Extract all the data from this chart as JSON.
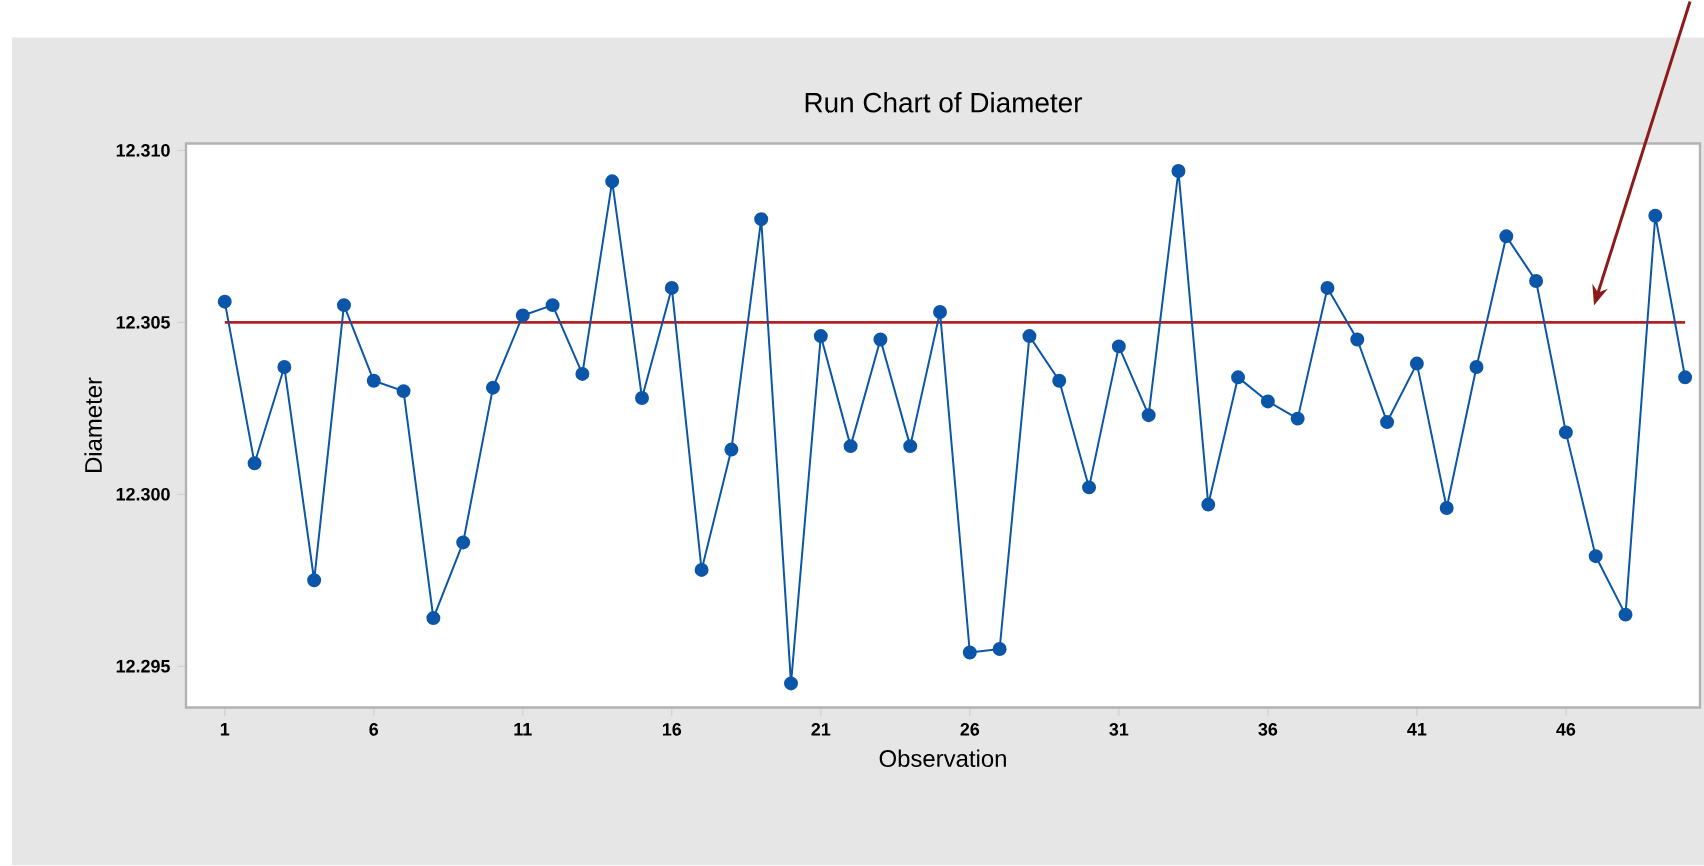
{
  "chart_data": {
    "type": "line",
    "title": "Run Chart of Diameter",
    "xlabel": "Observation",
    "ylabel": "Diameter",
    "x": [
      1,
      2,
      3,
      4,
      5,
      6,
      7,
      8,
      9,
      10,
      11,
      12,
      13,
      14,
      15,
      16,
      17,
      18,
      19,
      20,
      21,
      22,
      23,
      24,
      25,
      26,
      27,
      28,
      29,
      30,
      31,
      32,
      33,
      34,
      35,
      36,
      37,
      38,
      39,
      40,
      41,
      42,
      43,
      44,
      45,
      46,
      47,
      48,
      49,
      50
    ],
    "series": [
      {
        "color": "#0b56a8",
        "values": [
          12.3056,
          12.3009,
          12.3037,
          12.2975,
          12.3055,
          12.3033,
          12.303,
          12.2964,
          12.2986,
          12.3031,
          12.3052,
          12.3055,
          12.3035,
          12.3091,
          12.3028,
          12.306,
          12.2978,
          12.3013,
          12.308,
          12.2945,
          12.3046,
          12.3014,
          12.3045,
          12.3014,
          12.3053,
          12.2954,
          12.2955,
          12.3046,
          12.3033,
          12.3002,
          12.3043,
          12.3023,
          12.3094,
          12.2997,
          12.3034,
          12.3027,
          12.3022,
          12.306,
          12.3045,
          12.3021,
          12.3038,
          12.2996,
          12.3037,
          12.3075,
          12.3062,
          12.3018,
          12.2982,
          12.2965,
          12.3081,
          12.3034
        ]
      }
    ],
    "xlim": [
      -0.3,
      50.5
    ],
    "ylim": [
      12.2938,
      12.3102
    ],
    "xticks": [
      1,
      6,
      11,
      16,
      21,
      26,
      31,
      36,
      41,
      46
    ],
    "yticks": [
      {
        "value": 12.295,
        "label": "12.295"
      },
      {
        "value": 12.3,
        "label": "12.300"
      },
      {
        "value": 12.305,
        "label": "12.305"
      },
      {
        "value": 12.31,
        "label": "12.310"
      }
    ],
    "ref_lines": [
      {
        "axis": "y",
        "value": 12.305,
        "color": "#b22222"
      }
    ],
    "marker": "circle",
    "line_style": "solid"
  }
}
